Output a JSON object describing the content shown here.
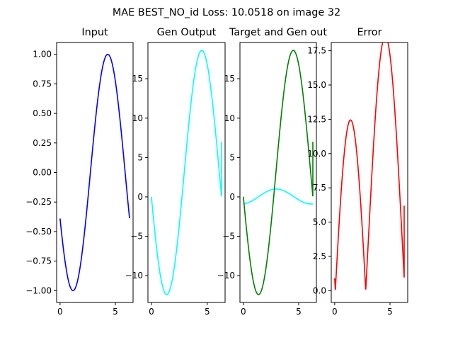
{
  "figure": {
    "suptitle": "MAE BEST_NO_id Loss: 10.0518 on image 32"
  },
  "chart_data": [
    {
      "type": "line",
      "title": "Input",
      "xlim": [
        -0.31,
        6.6
      ],
      "ylim": [
        -1.1,
        1.1
      ],
      "xticks": [
        {
          "v": 0,
          "label": "0"
        },
        {
          "v": 5,
          "label": "5"
        }
      ],
      "yticks": [
        {
          "v": -1.0,
          "label": "−1.00"
        },
        {
          "v": -0.75,
          "label": "−0.75"
        },
        {
          "v": -0.5,
          "label": "−0.50"
        },
        {
          "v": -0.25,
          "label": "−0.25"
        },
        {
          "v": 0.0,
          "label": "0.00"
        },
        {
          "v": 0.25,
          "label": "0.25"
        },
        {
          "v": 0.5,
          "label": "0.50"
        },
        {
          "v": 0.75,
          "label": "0.75"
        },
        {
          "v": 1.0,
          "label": "1.00"
        }
      ],
      "series": [
        {
          "color": "#0000ff",
          "x_range": [
            0,
            6.28
          ],
          "x_end": 6.28,
          "formula": "input"
        }
      ]
    },
    {
      "type": "line",
      "title": "Gen Output",
      "xlim": [
        -0.31,
        6.6
      ],
      "ylim": [
        -13.4,
        19.6
      ],
      "xticks": [
        {
          "v": 0,
          "label": "0"
        },
        {
          "v": 5,
          "label": "5"
        }
      ],
      "yticks": [
        {
          "v": -10,
          "label": "−10"
        },
        {
          "v": -5,
          "label": "−5"
        },
        {
          "v": 0,
          "label": "0"
        },
        {
          "v": 5,
          "label": "5"
        },
        {
          "v": 10,
          "label": "10"
        },
        {
          "v": 15,
          "label": "15"
        }
      ],
      "series": [
        {
          "color": "#00ffff",
          "formula": "target"
        }
      ]
    },
    {
      "type": "line",
      "title": "Target and Gen out",
      "xlim": [
        -0.31,
        6.6
      ],
      "ylim": [
        -13.4,
        19.6
      ],
      "xticks": [
        {
          "v": 0,
          "label": "0"
        },
        {
          "v": 5,
          "label": "5"
        }
      ],
      "yticks": [
        {
          "v": -10,
          "label": "−10"
        },
        {
          "v": -5,
          "label": "−5"
        },
        {
          "v": 0,
          "label": "0"
        },
        {
          "v": 5,
          "label": "5"
        },
        {
          "v": 10,
          "label": "10"
        },
        {
          "v": 15,
          "label": "15"
        }
      ],
      "series": [
        {
          "color": "#00ffff",
          "formula": "genout"
        },
        {
          "color": "#008000",
          "formula": "target"
        }
      ]
    },
    {
      "type": "line",
      "title": "Error",
      "xlim": [
        -0.31,
        6.6
      ],
      "ylim": [
        -0.86,
        18.1
      ],
      "xticks": [
        {
          "v": 0,
          "label": "0"
        },
        {
          "v": 5,
          "label": "5"
        }
      ],
      "yticks": [
        {
          "v": 0.0,
          "label": "0.0"
        },
        {
          "v": 2.5,
          "label": "2.5"
        },
        {
          "v": 5.0,
          "label": "5.0"
        },
        {
          "v": 7.5,
          "label": "7.5"
        },
        {
          "v": 10.0,
          "label": "10.0"
        },
        {
          "v": 12.5,
          "label": "12.5"
        },
        {
          "v": 15.0,
          "label": "15.0"
        },
        {
          "v": 17.5,
          "label": "17.5"
        }
      ],
      "series": [
        {
          "color": "#ff0000",
          "formula": "error"
        }
      ]
    }
  ]
}
